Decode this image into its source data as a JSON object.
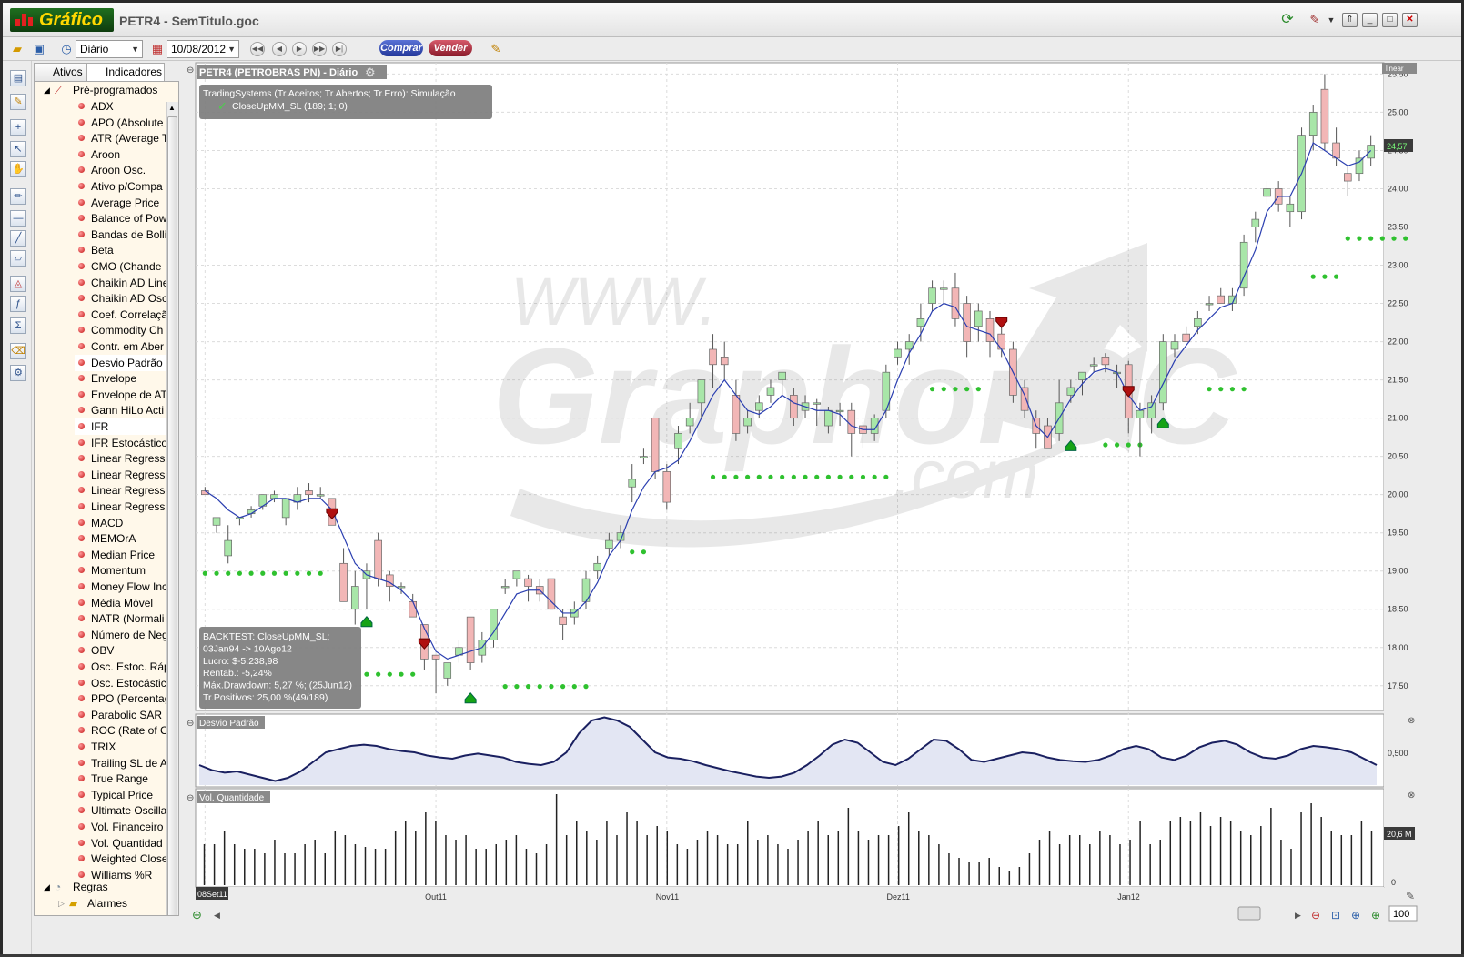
{
  "app": {
    "logo": "Gráfico",
    "title": "PETR4 - SemTitulo.goc"
  },
  "toolbar": {
    "period": "Diário",
    "date": "10/08/2012",
    "buy_label": "Comprar",
    "sell_label": "Vender"
  },
  "panel": {
    "tabs": [
      "Ativos",
      "Indicadores"
    ],
    "root_label": "Pré-programados",
    "items": [
      "ADX",
      "APO (Absolute",
      "ATR (Average T",
      "Aroon",
      "Aroon Osc.",
      "Ativo p/Compa",
      "Average Price",
      "Balance of Pow",
      "Bandas de Bolli",
      "Beta",
      "CMO (Chande",
      "Chaikin AD Line",
      "Chaikin AD Osc",
      "Coef. Correlaçã",
      "Commodity Ch",
      "Contr. em Aber",
      "Desvio Padrão",
      "Envelope",
      "Envelope de AT",
      "Gann HiLo Acti",
      "IFR",
      "IFR Estocástico",
      "Linear Regressi",
      "Linear Regressi",
      "Linear Regressi",
      "Linear Regressi",
      "MACD",
      "MEMOrA",
      "Median Price",
      "Momentum",
      "Money Flow Inc",
      "Média Móvel",
      "NATR (Normali",
      "Número de Neg",
      "OBV",
      "Osc. Estoc. Ráp",
      "Osc. Estocástic",
      "PPO (Percentag",
      "Parabolic SAR",
      "ROC (Rate of C",
      "TRIX",
      "Trailing SL de A",
      "True Range",
      "Typical Price",
      "Ultimate Oscilla",
      "Vol. Financeiro",
      "Vol. Quantidad",
      "Weighted Close",
      "Williams %R"
    ],
    "selected": [
      "Desvio Padrão",
      "IFR"
    ],
    "root2_label": "Regras",
    "root3_label": "Alarmes"
  },
  "chart": {
    "title": "PETR4 (PETROBRAS  PN) - Diário",
    "scale_mode": "linear",
    "last_price_label": "24,57",
    "trading_systems_header": "TradingSystems (Tr.Aceitos; Tr.Abertos; Tr.Erro): Simulação",
    "trading_system_item": "CloseUpMM_SL (189; 1; 0)",
    "watermark_top": "WWW.",
    "watermark_main": "GraphorOC",
    "watermark_bottom": ".com",
    "backtest_lines": [
      "BACKTEST: CloseUpMM_SL;",
      "03Jan94 -> 10Ago12",
      "Lucro: $-5.238,98",
      "Rentab.: -5,24%",
      "Máx.Drawdown: 5,27 %; (25Jun12)",
      "Tr.Positivos: 25,00 %(49/189)"
    ],
    "price_ticks": [
      "25,50",
      "25,00",
      "24,50",
      "24,00",
      "23,50",
      "23,00",
      "22,50",
      "22,00",
      "21,50",
      "21,00",
      "20,50",
      "20,00",
      "19,50",
      "19,00",
      "18,50",
      "18,00",
      "17,50"
    ],
    "date_labels": [
      "08Set11",
      "Out11",
      "Nov11",
      "Dez11",
      "Jan12"
    ],
    "std_panel_title": "Desvio Padrão",
    "std_tick": "0,500",
    "vol_panel_title": "Vol. Quantidade",
    "vol_last_label": "20,6 M",
    "vol_zero": "0",
    "zoom_value": "100"
  },
  "chart_data": {
    "type": "candlestick",
    "symbol": "PETR4",
    "ylim": [
      17.2,
      25.6
    ],
    "candles": [
      [
        20.05,
        20.0,
        20.1,
        20.0
      ],
      [
        19.6,
        19.7,
        19.6,
        19.5
      ],
      [
        19.2,
        19.4,
        19.6,
        19.1
      ],
      [
        19.7,
        19.7,
        19.7,
        19.6
      ],
      [
        19.75,
        19.8,
        19.85,
        19.7
      ],
      [
        19.85,
        20.0,
        20.0,
        19.8
      ],
      [
        19.95,
        20.0,
        20.05,
        19.9
      ],
      [
        19.7,
        19.95,
        19.8,
        19.6
      ],
      [
        19.9,
        20.0,
        20.1,
        19.8
      ],
      [
        20.05,
        20.0,
        20.15,
        19.9
      ],
      [
        20.0,
        20.0,
        20.1,
        19.95
      ],
      [
        19.95,
        19.6,
        19.95,
        19.6
      ],
      [
        19.1,
        18.6,
        19.3,
        18.6
      ],
      [
        18.5,
        18.8,
        19.0,
        18.3
      ],
      [
        18.9,
        19.0,
        19.1,
        18.5
      ],
      [
        19.4,
        18.9,
        19.5,
        18.8
      ],
      [
        18.95,
        18.8,
        19.0,
        18.6
      ],
      [
        18.8,
        18.8,
        18.85,
        18.7
      ],
      [
        18.6,
        18.4,
        18.7,
        18.4
      ],
      [
        18.3,
        17.85,
        18.3,
        17.7
      ],
      [
        17.9,
        17.85,
        17.9,
        17.4
      ],
      [
        17.6,
        17.8,
        17.6,
        17.5
      ],
      [
        17.9,
        18.0,
        18.1,
        17.8
      ],
      [
        18.4,
        17.8,
        18.4,
        17.7
      ],
      [
        17.9,
        18.1,
        18.2,
        17.8
      ],
      [
        18.1,
        18.5,
        18.5,
        18.0
      ],
      [
        18.8,
        18.8,
        18.9,
        18.7
      ],
      [
        18.9,
        19.0,
        19.0,
        18.8
      ],
      [
        18.9,
        18.8,
        18.95,
        18.6
      ],
      [
        18.8,
        18.7,
        18.9,
        18.6
      ],
      [
        18.9,
        18.5,
        18.9,
        18.5
      ],
      [
        18.4,
        18.3,
        18.5,
        18.1
      ],
      [
        18.4,
        18.5,
        18.6,
        18.3
      ],
      [
        18.6,
        18.9,
        19.0,
        18.5
      ],
      [
        19.0,
        19.1,
        19.2,
        18.9
      ],
      [
        19.3,
        19.4,
        19.5,
        19.2
      ],
      [
        19.4,
        19.5,
        19.6,
        19.3
      ],
      [
        20.1,
        20.2,
        20.4,
        19.9
      ],
      [
        20.5,
        20.5,
        20.6,
        20.4
      ],
      [
        21.0,
        20.3,
        21.0,
        20.2
      ],
      [
        20.3,
        19.9,
        20.4,
        19.8
      ],
      [
        20.6,
        20.8,
        20.9,
        20.4
      ],
      [
        20.9,
        21.0,
        21.2,
        20.8
      ],
      [
        21.2,
        21.5,
        21.5,
        21.0
      ],
      [
        21.9,
        21.7,
        22.1,
        21.4
      ],
      [
        21.8,
        21.7,
        22.0,
        21.5
      ],
      [
        21.3,
        20.8,
        21.5,
        20.7
      ],
      [
        20.9,
        21.0,
        21.1,
        20.8
      ],
      [
        21.1,
        21.2,
        21.3,
        21.0
      ],
      [
        21.3,
        21.4,
        21.5,
        21.2
      ],
      [
        21.5,
        21.6,
        21.6,
        21.3
      ],
      [
        21.3,
        21.0,
        21.4,
        20.9
      ],
      [
        21.1,
        21.2,
        21.3,
        21.0
      ],
      [
        21.2,
        21.2,
        21.25,
        20.9
      ],
      [
        20.9,
        21.1,
        21.15,
        20.8
      ],
      [
        21.1,
        21.1,
        21.2,
        20.9
      ],
      [
        21.1,
        20.8,
        21.2,
        20.5
      ],
      [
        20.9,
        20.8,
        20.95,
        20.6
      ],
      [
        20.8,
        21.0,
        21.05,
        20.7
      ],
      [
        21.1,
        21.6,
        21.7,
        21.0
      ],
      [
        21.8,
        21.9,
        22.0,
        21.7
      ],
      [
        21.9,
        22.0,
        22.1,
        21.7
      ],
      [
        22.2,
        22.3,
        22.5,
        22.0
      ],
      [
        22.5,
        22.7,
        22.8,
        22.4
      ],
      [
        22.7,
        22.7,
        22.8,
        22.5
      ],
      [
        22.7,
        22.3,
        22.9,
        22.2
      ],
      [
        22.5,
        22.0,
        22.6,
        21.8
      ],
      [
        22.2,
        22.4,
        22.5,
        22.0
      ],
      [
        22.3,
        22.0,
        22.4,
        21.8
      ],
      [
        22.1,
        21.9,
        22.2,
        21.8
      ],
      [
        21.9,
        21.3,
        22.0,
        21.2
      ],
      [
        21.4,
        21.1,
        21.5,
        21.0
      ],
      [
        21.0,
        20.8,
        21.1,
        20.6
      ],
      [
        20.9,
        20.6,
        21.0,
        20.6
      ],
      [
        20.8,
        21.2,
        21.5,
        20.7
      ],
      [
        21.3,
        21.4,
        21.5,
        21.2
      ],
      [
        21.5,
        21.6,
        21.6,
        21.3
      ],
      [
        21.7,
        21.7,
        21.8,
        21.6
      ],
      [
        21.8,
        21.7,
        21.85,
        21.6
      ],
      [
        21.6,
        21.6,
        21.7,
        21.4
      ],
      [
        21.7,
        21.0,
        21.75,
        20.8
      ],
      [
        21.0,
        21.1,
        21.2,
        20.5
      ],
      [
        21.0,
        21.2,
        21.3,
        20.8
      ],
      [
        21.2,
        22.0,
        22.1,
        21.1
      ],
      [
        21.9,
        22.0,
        22.1,
        21.8
      ],
      [
        22.1,
        22.0,
        22.2,
        22.0
      ],
      [
        22.2,
        22.3,
        22.4,
        22.1
      ],
      [
        22.5,
        22.5,
        22.6,
        22.4
      ],
      [
        22.6,
        22.5,
        22.7,
        22.5
      ],
      [
        22.5,
        22.6,
        22.7,
        22.4
      ],
      [
        22.7,
        23.3,
        23.4,
        22.6
      ],
      [
        23.5,
        23.6,
        23.7,
        23.3
      ],
      [
        23.9,
        24.0,
        24.1,
        23.8
      ],
      [
        24.0,
        23.8,
        24.1,
        23.7
      ],
      [
        23.7,
        23.8,
        23.9,
        23.5
      ],
      [
        23.7,
        24.7,
        24.8,
        23.6
      ],
      [
        24.7,
        25.0,
        25.1,
        24.5
      ],
      [
        25.3,
        24.6,
        25.5,
        24.5
      ],
      [
        24.6,
        24.4,
        24.8,
        24.3
      ],
      [
        24.2,
        24.1,
        24.3,
        23.9
      ],
      [
        24.2,
        24.4,
        24.5,
        24.1
      ],
      [
        24.4,
        24.57,
        24.7,
        24.3
      ]
    ],
    "moving_average": [
      20.05,
      19.95,
      19.8,
      19.7,
      19.75,
      19.85,
      19.95,
      19.95,
      19.9,
      19.95,
      19.95,
      19.8,
      19.45,
      19.1,
      18.95,
      18.9,
      18.85,
      18.75,
      18.6,
      18.25,
      17.95,
      17.85,
      17.9,
      17.95,
      18.0,
      18.2,
      18.45,
      18.7,
      18.75,
      18.75,
      18.6,
      18.45,
      18.45,
      18.6,
      18.85,
      19.2,
      19.4,
      19.8,
      20.1,
      20.3,
      20.35,
      20.45,
      20.7,
      21.0,
      21.3,
      21.5,
      21.3,
      21.1,
      21.05,
      21.15,
      21.3,
      21.2,
      21.15,
      21.1,
      21.1,
      21.05,
      20.9,
      20.85,
      20.85,
      21.1,
      21.5,
      21.85,
      22.1,
      22.4,
      22.5,
      22.45,
      22.2,
      22.15,
      22.1,
      21.9,
      21.6,
      21.3,
      20.9,
      20.75,
      21.0,
      21.25,
      21.45,
      21.6,
      21.65,
      21.6,
      21.3,
      21.1,
      21.15,
      21.45,
      21.75,
      21.95,
      22.15,
      22.3,
      22.45,
      22.5,
      22.85,
      23.2,
      23.7,
      23.9,
      23.9,
      24.2,
      24.6,
      24.5,
      24.4,
      24.3,
      24.35,
      24.5
    ],
    "trades": [
      {
        "type": "sell",
        "index": 11,
        "price": 19.6
      },
      {
        "type": "buy",
        "index": 14,
        "price": 18.5
      },
      {
        "type": "sell",
        "index": 19,
        "price": 17.9
      },
      {
        "type": "buy",
        "index": 23,
        "price": 17.5
      },
      {
        "type": "sell",
        "index": 69,
        "price": 22.1
      },
      {
        "type": "buy",
        "index": 75,
        "price": 20.8
      },
      {
        "type": "sell",
        "index": 80,
        "price": 21.2
      },
      {
        "type": "buy",
        "index": 83,
        "price": 21.1
      }
    ],
    "stop_levels": [
      {
        "from": 0,
        "to": 10,
        "price": 18.97
      },
      {
        "from": 14,
        "to": 18,
        "price": 17.65
      },
      {
        "from": 26,
        "to": 33,
        "price": 17.49
      },
      {
        "from": 37,
        "to": 38,
        "price": 19.25
      },
      {
        "from": 44,
        "to": 59,
        "price": 20.23
      },
      {
        "from": 63,
        "to": 67,
        "price": 21.38
      },
      {
        "from": 78,
        "to": 81,
        "price": 20.65
      },
      {
        "from": 87,
        "to": 90,
        "price": 21.38
      },
      {
        "from": 96,
        "to": 98,
        "price": 22.85
      },
      {
        "from": 99,
        "to": 104,
        "price": 23.35
      }
    ],
    "std_dev": [
      0.3,
      0.22,
      0.18,
      0.2,
      0.15,
      0.1,
      0.05,
      0.1,
      0.2,
      0.35,
      0.5,
      0.55,
      0.6,
      0.62,
      0.6,
      0.55,
      0.52,
      0.5,
      0.45,
      0.42,
      0.4,
      0.45,
      0.48,
      0.45,
      0.42,
      0.35,
      0.32,
      0.3,
      0.35,
      0.5,
      0.8,
      1.0,
      1.05,
      1.0,
      0.9,
      0.7,
      0.5,
      0.42,
      0.4,
      0.36,
      0.3,
      0.25,
      0.2,
      0.16,
      0.12,
      0.1,
      0.12,
      0.18,
      0.3,
      0.45,
      0.62,
      0.7,
      0.65,
      0.5,
      0.35,
      0.3,
      0.4,
      0.55,
      0.7,
      0.68,
      0.55,
      0.38,
      0.35,
      0.4,
      0.45,
      0.5,
      0.48,
      0.42,
      0.38,
      0.36,
      0.35,
      0.38,
      0.45,
      0.55,
      0.6,
      0.55,
      0.42,
      0.38,
      0.45,
      0.58,
      0.65,
      0.68,
      0.62,
      0.5,
      0.42,
      0.4,
      0.45,
      0.55,
      0.6,
      0.58,
      0.55,
      0.5,
      0.4,
      0.3
    ],
    "volume": [
      0.45,
      0.45,
      0.6,
      0.45,
      0.4,
      0.4,
      0.35,
      0.5,
      0.35,
      0.35,
      0.45,
      0.5,
      0.35,
      0.6,
      0.55,
      0.45,
      0.42,
      0.4,
      0.4,
      0.6,
      0.7,
      0.6,
      0.8,
      0.7,
      0.55,
      0.5,
      0.55,
      0.4,
      0.4,
      0.45,
      0.5,
      0.55,
      0.4,
      0.35,
      0.45,
      1.0,
      0.55,
      0.7,
      0.6,
      0.5,
      0.7,
      0.55,
      0.8,
      0.7,
      0.55,
      0.65,
      0.6,
      0.45,
      0.4,
      0.5,
      0.6,
      0.55,
      0.45,
      0.45,
      0.7,
      0.5,
      0.55,
      0.45,
      0.4,
      0.5,
      0.6,
      0.7,
      0.55,
      0.6,
      0.85,
      0.6,
      0.5,
      0.55,
      0.55,
      0.65,
      0.8,
      0.6,
      0.55,
      0.45,
      0.35,
      0.3,
      0.25,
      0.25,
      0.3,
      0.2,
      0.15,
      0.2,
      0.35,
      0.5,
      0.6,
      0.45,
      0.55,
      0.55,
      0.45,
      0.6,
      0.55,
      0.45,
      0.5,
      0.7,
      0.45,
      0.5,
      0.7,
      0.75,
      0.7,
      0.8,
      0.65,
      0.75,
      0.7,
      0.6,
      0.55,
      0.65,
      0.85,
      0.5,
      0.4,
      0.8,
      0.9,
      0.75,
      0.6,
      0.55,
      0.55,
      0.7,
      0.6
    ]
  }
}
